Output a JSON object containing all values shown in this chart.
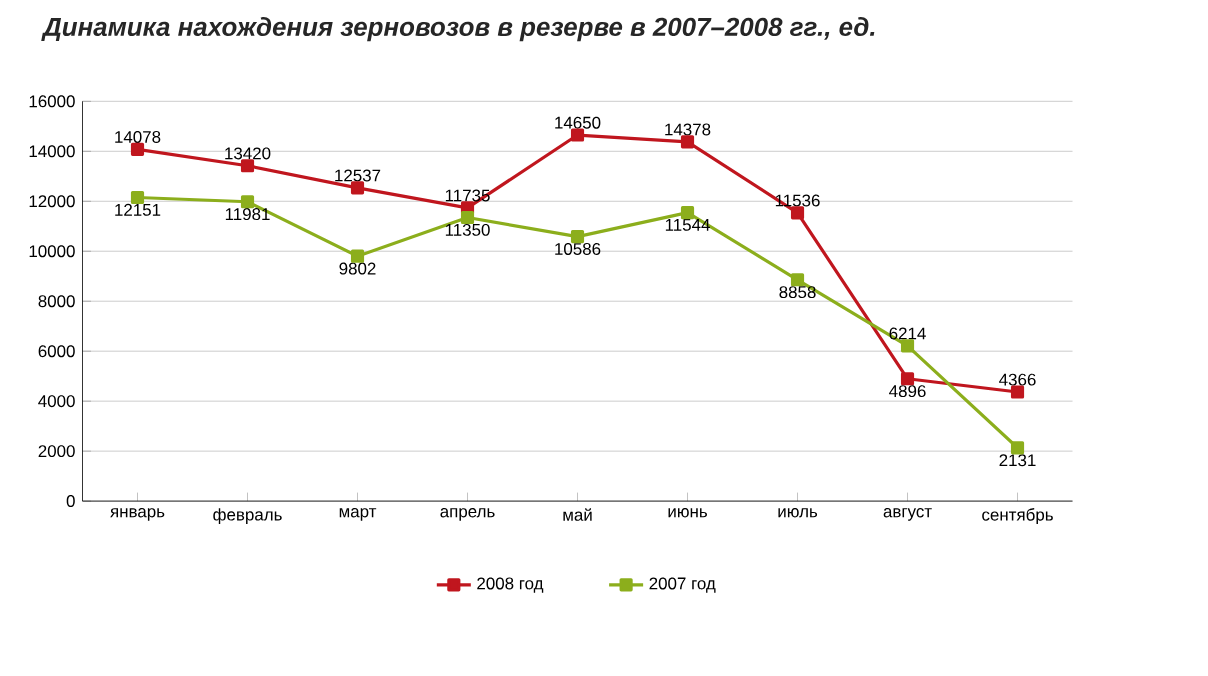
{
  "chart_data": {
    "type": "line",
    "title": "Динамика нахождения зерновозов в резерве в 2007–2008 гг., ед.",
    "categories": [
      "январь",
      "февраль",
      "март",
      "апрель",
      "май",
      "июнь",
      "июль",
      "август",
      "сентябрь"
    ],
    "series": [
      {
        "name": "2008 год",
        "color": "#c0161e",
        "values": [
          14078,
          13420,
          12537,
          11735,
          14650,
          14378,
          11536,
          4896,
          4366
        ]
      },
      {
        "name": "2007 год",
        "color": "#8cae1c",
        "values": [
          12151,
          11981,
          9802,
          11350,
          10586,
          11544,
          8858,
          6214,
          2131
        ]
      }
    ],
    "ylim": [
      0,
      16000
    ],
    "yticks": [
      0,
      2000,
      4000,
      6000,
      8000,
      10000,
      12000,
      14000,
      16000
    ],
    "grid": "y",
    "legend": "bottom",
    "marker": "square",
    "line_style": "solid",
    "data_labels": true
  }
}
